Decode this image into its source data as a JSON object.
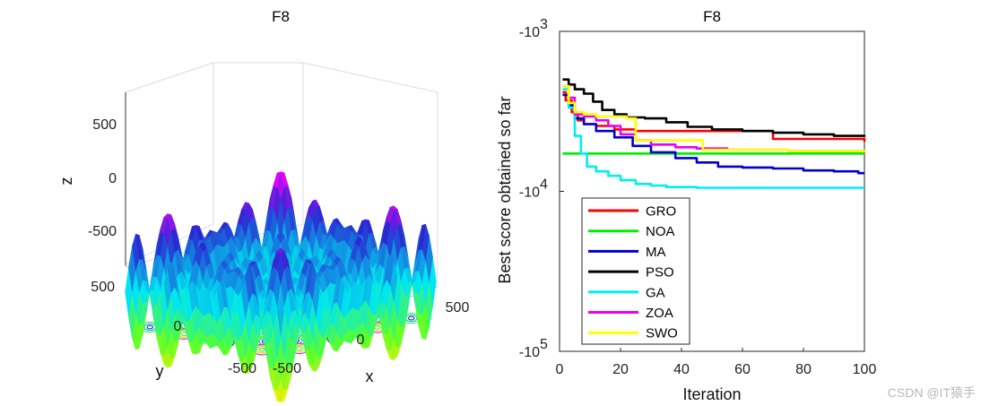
{
  "watermark": "CSDN @IT猿手",
  "chart_data": [
    {
      "type": "surface3d",
      "title": "F8",
      "xlabel": "x",
      "ylabel": "y",
      "zlabel": "z",
      "x_ticks": [
        "-500",
        "0",
        "500"
      ],
      "y_ticks": [
        "-500",
        "0",
        "500"
      ],
      "z_ticks": [
        "500",
        "0",
        "-500"
      ],
      "xlim": [
        -500,
        500
      ],
      "ylim": [
        -500,
        500
      ],
      "zlim": [
        -840,
        840
      ],
      "function": "z = -x*sin(sqrt(|x|)) - y*sin(sqrt(|y|))",
      "contour_projection": true
    },
    {
      "type": "line",
      "title": "F8",
      "xlabel": "Iteration",
      "ylabel": "Best score obtained so far",
      "xlim": [
        0,
        100
      ],
      "x_ticks": [
        "0",
        "20",
        "40",
        "60",
        "80",
        "100"
      ],
      "y_scale": "log-negative",
      "y_ticks": [
        {
          "base": "-10",
          "exp": "3"
        },
        {
          "base": "-10",
          "exp": "4"
        },
        {
          "base": "-10",
          "exp": "5"
        }
      ],
      "legend_position": "bottom-left",
      "series": [
        {
          "name": "GRO",
          "color": "#ff0000",
          "x": [
            1,
            2,
            4,
            6,
            8,
            12,
            18,
            25,
            35,
            45,
            55,
            68,
            70,
            80,
            90,
            98,
            100
          ],
          "y": [
            -2400,
            -2700,
            -3200,
            -3600,
            -3800,
            -3900,
            -4100,
            -4200,
            -4200,
            -4200,
            -4200,
            -4200,
            -4700,
            -4700,
            -4700,
            -4700,
            -4900
          ]
        },
        {
          "name": "NOA",
          "color": "#00ee00",
          "x": [
            1,
            100
          ],
          "y": [
            -5800,
            -5800
          ]
        },
        {
          "name": "MA",
          "color": "#0000cc",
          "x": [
            1,
            3,
            5,
            8,
            12,
            18,
            24,
            30,
            38,
            45,
            52,
            60,
            70,
            80,
            90,
            98,
            100
          ],
          "y": [
            -2500,
            -2900,
            -3500,
            -3800,
            -4200,
            -4600,
            -5200,
            -5700,
            -6200,
            -6600,
            -7000,
            -7100,
            -7200,
            -7400,
            -7500,
            -7700,
            -7700
          ]
        },
        {
          "name": "PSO",
          "color": "#000000",
          "x": [
            1,
            3,
            5,
            8,
            11,
            14,
            18,
            22,
            28,
            35,
            42,
            50,
            60,
            70,
            80,
            90,
            100
          ],
          "y": [
            -2000,
            -2150,
            -2300,
            -2450,
            -2750,
            -3100,
            -3300,
            -3450,
            -3500,
            -3700,
            -3950,
            -4100,
            -4200,
            -4300,
            -4400,
            -4500,
            -4550
          ]
        },
        {
          "name": "GA",
          "color": "#00eeee",
          "x": [
            1,
            3,
            5,
            7,
            9,
            12,
            16,
            20,
            25,
            30,
            35,
            45,
            60,
            80,
            100
          ],
          "y": [
            -2300,
            -3000,
            -4500,
            -5800,
            -7000,
            -7500,
            -8000,
            -8500,
            -9000,
            -9200,
            -9400,
            -9500,
            -9500,
            -9500,
            -9500
          ]
        },
        {
          "name": "ZOA",
          "color": "#ee00ee",
          "x": [
            1,
            3,
            5,
            8,
            12,
            16,
            20,
            25,
            30,
            38,
            45,
            55,
            65,
            75,
            85,
            100
          ],
          "y": [
            -2200,
            -2600,
            -3300,
            -3400,
            -3600,
            -3900,
            -4400,
            -4800,
            -5100,
            -5300,
            -5400,
            -5500,
            -5500,
            -5600,
            -5600,
            -5700
          ]
        },
        {
          "name": "SWO",
          "color": "#ffff00",
          "x": [
            1,
            3,
            5,
            8,
            12,
            18,
            22,
            25,
            28,
            35,
            45,
            47,
            55,
            65,
            75,
            85,
            100
          ],
          "y": [
            -2200,
            -2800,
            -3200,
            -3300,
            -3400,
            -3400,
            -3500,
            -4800,
            -4800,
            -4800,
            -4800,
            -5500,
            -5500,
            -5500,
            -5600,
            -5600,
            -5700
          ]
        }
      ]
    }
  ]
}
